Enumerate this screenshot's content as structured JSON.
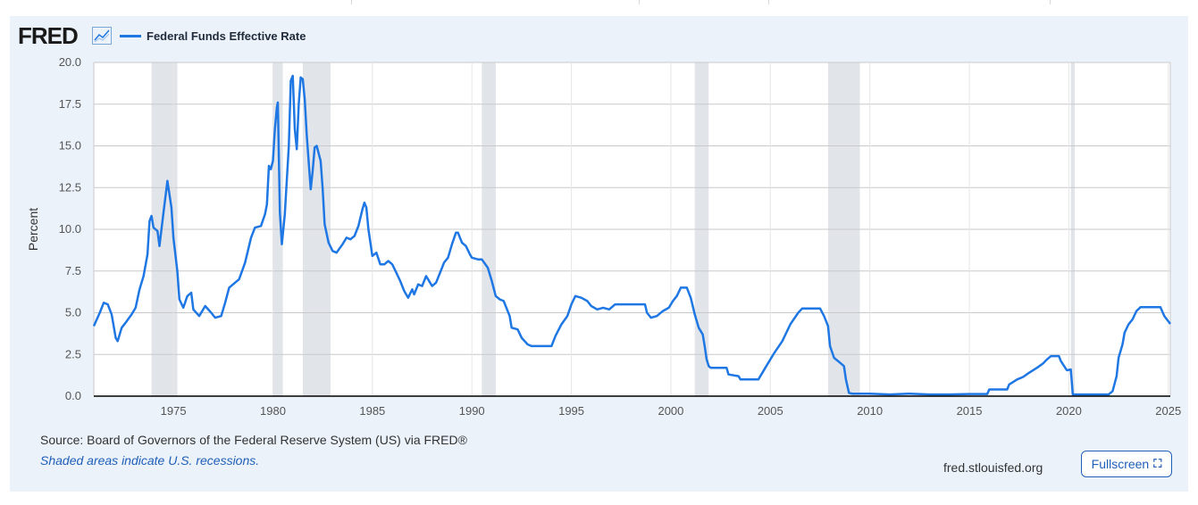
{
  "header": {
    "logo_text": "FRED",
    "logo_icon": "line-chart-icon",
    "accent_color": "#1f77e4"
  },
  "footer": {
    "source": "Source: Board of Governors of the Federal Reserve System (US) via FRED®",
    "note": "Shaded areas indicate U.S. recessions.",
    "url": "fred.stlouisfed.org",
    "fullscreen_label": "Fullscreen",
    "fullscreen_icon": "expand-icon"
  },
  "chart_data": {
    "type": "line",
    "title": "",
    "xlabel": "",
    "ylabel": "Percent",
    "xlim": [
      1971.0,
      2025.1
    ],
    "ylim": [
      0,
      20
    ],
    "x_ticks": [
      1975,
      1980,
      1985,
      1990,
      1995,
      2000,
      2005,
      2010,
      2015,
      2020,
      2025
    ],
    "x_tick_labels": [
      "1975",
      "1980",
      "1985",
      "1990",
      "1995",
      "2000",
      "2005",
      "2010",
      "2015",
      "2020",
      "2025"
    ],
    "y_ticks": [
      0,
      2.5,
      5,
      7.5,
      10,
      12.5,
      15,
      17.5,
      20
    ],
    "y_tick_labels": [
      "0.0",
      "2.5",
      "5.0",
      "7.5",
      "10.0",
      "12.5",
      "15.0",
      "17.5",
      "20.0"
    ],
    "grid": true,
    "legend_position": "top-left",
    "recessions": [
      [
        1973.9,
        1975.2
      ],
      [
        1980.0,
        1980.5
      ],
      [
        1981.5,
        1982.9
      ],
      [
        1990.5,
        1991.2
      ],
      [
        2001.2,
        2001.9
      ],
      [
        2007.9,
        2009.5
      ],
      [
        2020.1,
        2020.3
      ]
    ],
    "series": [
      {
        "name": "Federal Funds Effective Rate",
        "color": "#1f77e4",
        "points": [
          [
            1971.0,
            4.2
          ],
          [
            1971.3,
            5.0
          ],
          [
            1971.5,
            5.6
          ],
          [
            1971.7,
            5.5
          ],
          [
            1971.9,
            4.9
          ],
          [
            1972.1,
            3.5
          ],
          [
            1972.2,
            3.3
          ],
          [
            1972.4,
            4.1
          ],
          [
            1972.6,
            4.4
          ],
          [
            1972.9,
            4.9
          ],
          [
            1973.1,
            5.3
          ],
          [
            1973.3,
            6.4
          ],
          [
            1973.5,
            7.2
          ],
          [
            1973.7,
            8.5
          ],
          [
            1973.8,
            10.5
          ],
          [
            1973.9,
            10.8
          ],
          [
            1974.0,
            10.1
          ],
          [
            1974.2,
            9.9
          ],
          [
            1974.3,
            9.0
          ],
          [
            1974.5,
            11.0
          ],
          [
            1974.7,
            12.9
          ],
          [
            1974.9,
            11.3
          ],
          [
            1975.0,
            9.5
          ],
          [
            1975.2,
            7.5
          ],
          [
            1975.3,
            5.8
          ],
          [
            1975.5,
            5.3
          ],
          [
            1975.7,
            6.0
          ],
          [
            1975.9,
            6.2
          ],
          [
            1976.0,
            5.2
          ],
          [
            1976.3,
            4.8
          ],
          [
            1976.6,
            5.4
          ],
          [
            1976.9,
            5.0
          ],
          [
            1977.1,
            4.7
          ],
          [
            1977.4,
            4.8
          ],
          [
            1977.6,
            5.6
          ],
          [
            1977.8,
            6.5
          ],
          [
            1978.0,
            6.7
          ],
          [
            1978.3,
            7.0
          ],
          [
            1978.6,
            8.0
          ],
          [
            1978.9,
            9.5
          ],
          [
            1979.1,
            10.1
          ],
          [
            1979.4,
            10.2
          ],
          [
            1979.6,
            10.9
          ],
          [
            1979.7,
            11.5
          ],
          [
            1979.8,
            13.8
          ],
          [
            1979.9,
            13.6
          ],
          [
            1980.0,
            14.1
          ],
          [
            1980.1,
            16.0
          ],
          [
            1980.2,
            17.3
          ],
          [
            1980.25,
            17.6
          ],
          [
            1980.35,
            11.0
          ],
          [
            1980.45,
            9.1
          ],
          [
            1980.6,
            10.9
          ],
          [
            1980.8,
            15.0
          ],
          [
            1980.9,
            18.9
          ],
          [
            1981.0,
            19.2
          ],
          [
            1981.1,
            16.0
          ],
          [
            1981.2,
            14.8
          ],
          [
            1981.3,
            17.5
          ],
          [
            1981.4,
            19.1
          ],
          [
            1981.5,
            19.0
          ],
          [
            1981.6,
            17.8
          ],
          [
            1981.7,
            15.7
          ],
          [
            1981.8,
            14.0
          ],
          [
            1981.9,
            12.4
          ],
          [
            1982.0,
            13.5
          ],
          [
            1982.1,
            14.9
          ],
          [
            1982.2,
            15.0
          ],
          [
            1982.4,
            14.1
          ],
          [
            1982.5,
            12.5
          ],
          [
            1982.6,
            10.3
          ],
          [
            1982.8,
            9.2
          ],
          [
            1983.0,
            8.7
          ],
          [
            1983.2,
            8.6
          ],
          [
            1983.5,
            9.1
          ],
          [
            1983.7,
            9.5
          ],
          [
            1983.9,
            9.4
          ],
          [
            1984.1,
            9.6
          ],
          [
            1984.3,
            10.2
          ],
          [
            1984.5,
            11.2
          ],
          [
            1984.6,
            11.6
          ],
          [
            1984.7,
            11.3
          ],
          [
            1984.8,
            10.0
          ],
          [
            1985.0,
            8.4
          ],
          [
            1985.2,
            8.6
          ],
          [
            1985.4,
            7.9
          ],
          [
            1985.6,
            7.9
          ],
          [
            1985.8,
            8.1
          ],
          [
            1986.0,
            7.9
          ],
          [
            1986.2,
            7.4
          ],
          [
            1986.4,
            6.9
          ],
          [
            1986.6,
            6.3
          ],
          [
            1986.8,
            5.9
          ],
          [
            1987.0,
            6.4
          ],
          [
            1987.1,
            6.1
          ],
          [
            1987.3,
            6.7
          ],
          [
            1987.5,
            6.6
          ],
          [
            1987.7,
            7.2
          ],
          [
            1987.9,
            6.8
          ],
          [
            1988.0,
            6.6
          ],
          [
            1988.2,
            6.8
          ],
          [
            1988.4,
            7.4
          ],
          [
            1988.6,
            8.0
          ],
          [
            1988.8,
            8.3
          ],
          [
            1989.0,
            9.1
          ],
          [
            1989.2,
            9.8
          ],
          [
            1989.3,
            9.8
          ],
          [
            1989.5,
            9.2
          ],
          [
            1989.7,
            9.0
          ],
          [
            1989.9,
            8.5
          ],
          [
            1990.0,
            8.3
          ],
          [
            1990.3,
            8.2
          ],
          [
            1990.5,
            8.2
          ],
          [
            1990.8,
            7.7
          ],
          [
            1991.0,
            6.9
          ],
          [
            1991.2,
            6.0
          ],
          [
            1991.4,
            5.8
          ],
          [
            1991.6,
            5.7
          ],
          [
            1991.9,
            4.8
          ],
          [
            1992.0,
            4.1
          ],
          [
            1992.3,
            4.0
          ],
          [
            1992.5,
            3.5
          ],
          [
            1992.8,
            3.1
          ],
          [
            1993.0,
            3.0
          ],
          [
            1993.5,
            3.0
          ],
          [
            1994.0,
            3.0
          ],
          [
            1994.2,
            3.6
          ],
          [
            1994.5,
            4.3
          ],
          [
            1994.8,
            4.8
          ],
          [
            1995.0,
            5.5
          ],
          [
            1995.2,
            6.0
          ],
          [
            1995.5,
            5.9
          ],
          [
            1995.8,
            5.7
          ],
          [
            1996.0,
            5.4
          ],
          [
            1996.3,
            5.2
          ],
          [
            1996.6,
            5.3
          ],
          [
            1996.9,
            5.2
          ],
          [
            1997.2,
            5.5
          ],
          [
            1997.6,
            5.5
          ],
          [
            1998.0,
            5.5
          ],
          [
            1998.4,
            5.5
          ],
          [
            1998.7,
            5.5
          ],
          [
            1998.8,
            5.0
          ],
          [
            1999.0,
            4.7
          ],
          [
            1999.3,
            4.8
          ],
          [
            1999.6,
            5.1
          ],
          [
            1999.9,
            5.3
          ],
          [
            2000.1,
            5.7
          ],
          [
            2000.3,
            6.0
          ],
          [
            2000.5,
            6.5
          ],
          [
            2000.8,
            6.5
          ],
          [
            2001.0,
            5.9
          ],
          [
            2001.2,
            4.9
          ],
          [
            2001.4,
            4.1
          ],
          [
            2001.6,
            3.7
          ],
          [
            2001.7,
            3.0
          ],
          [
            2001.8,
            2.2
          ],
          [
            2001.9,
            1.8
          ],
          [
            2002.0,
            1.7
          ],
          [
            2002.8,
            1.7
          ],
          [
            2002.9,
            1.3
          ],
          [
            2003.4,
            1.2
          ],
          [
            2003.5,
            1.0
          ],
          [
            2004.0,
            1.0
          ],
          [
            2004.4,
            1.0
          ],
          [
            2004.8,
            1.8
          ],
          [
            2005.2,
            2.6
          ],
          [
            2005.6,
            3.3
          ],
          [
            2006.0,
            4.3
          ],
          [
            2006.4,
            5.0
          ],
          [
            2006.6,
            5.25
          ],
          [
            2007.5,
            5.25
          ],
          [
            2007.7,
            4.8
          ],
          [
            2007.9,
            4.2
          ],
          [
            2008.0,
            3.0
          ],
          [
            2008.2,
            2.3
          ],
          [
            2008.5,
            2.0
          ],
          [
            2008.7,
            1.8
          ],
          [
            2008.8,
            1.0
          ],
          [
            2008.95,
            0.2
          ],
          [
            2009.1,
            0.15
          ],
          [
            2010.0,
            0.15
          ],
          [
            2011.0,
            0.1
          ],
          [
            2012.0,
            0.15
          ],
          [
            2013.0,
            0.1
          ],
          [
            2014.0,
            0.1
          ],
          [
            2015.0,
            0.13
          ],
          [
            2015.9,
            0.13
          ],
          [
            2016.0,
            0.4
          ],
          [
            2016.9,
            0.4
          ],
          [
            2017.0,
            0.7
          ],
          [
            2017.4,
            1.0
          ],
          [
            2017.7,
            1.15
          ],
          [
            2018.0,
            1.4
          ],
          [
            2018.4,
            1.7
          ],
          [
            2018.7,
            1.95
          ],
          [
            2018.9,
            2.2
          ],
          [
            2019.1,
            2.4
          ],
          [
            2019.5,
            2.4
          ],
          [
            2019.6,
            2.1
          ],
          [
            2019.9,
            1.55
          ],
          [
            2020.1,
            1.6
          ],
          [
            2020.2,
            0.1
          ],
          [
            2021.0,
            0.1
          ],
          [
            2022.0,
            0.1
          ],
          [
            2022.2,
            0.3
          ],
          [
            2022.4,
            1.2
          ],
          [
            2022.5,
            2.3
          ],
          [
            2022.7,
            3.1
          ],
          [
            2022.8,
            3.8
          ],
          [
            2023.0,
            4.3
          ],
          [
            2023.2,
            4.6
          ],
          [
            2023.4,
            5.1
          ],
          [
            2023.6,
            5.33
          ],
          [
            2024.6,
            5.33
          ],
          [
            2024.8,
            4.8
          ],
          [
            2025.1,
            4.33
          ]
        ]
      }
    ]
  }
}
